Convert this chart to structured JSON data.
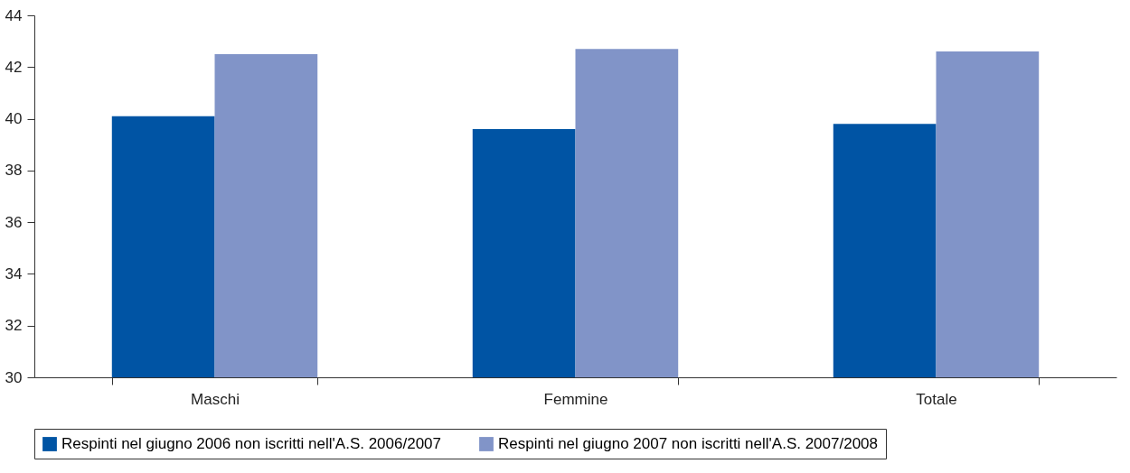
{
  "chart_data": {
    "type": "bar",
    "categories": [
      "Maschi",
      "Femmine",
      "Totale"
    ],
    "series": [
      {
        "name": "Respinti nel giugno 2006 non iscritti nell'A.S. 2006/2007",
        "color": "#0054a4",
        "values": [
          40.1,
          39.6,
          39.8
        ]
      },
      {
        "name": "Respinti nel giugno 2007 non iscritti nell'A.S. 2007/2008",
        "color": "#8194c8",
        "values": [
          42.5,
          42.7,
          42.6
        ]
      }
    ],
    "ylim": [
      30,
      44
    ],
    "yticks": [
      30,
      32,
      34,
      36,
      38,
      40,
      42,
      44
    ],
    "grid": false,
    "legend": "bottom"
  }
}
